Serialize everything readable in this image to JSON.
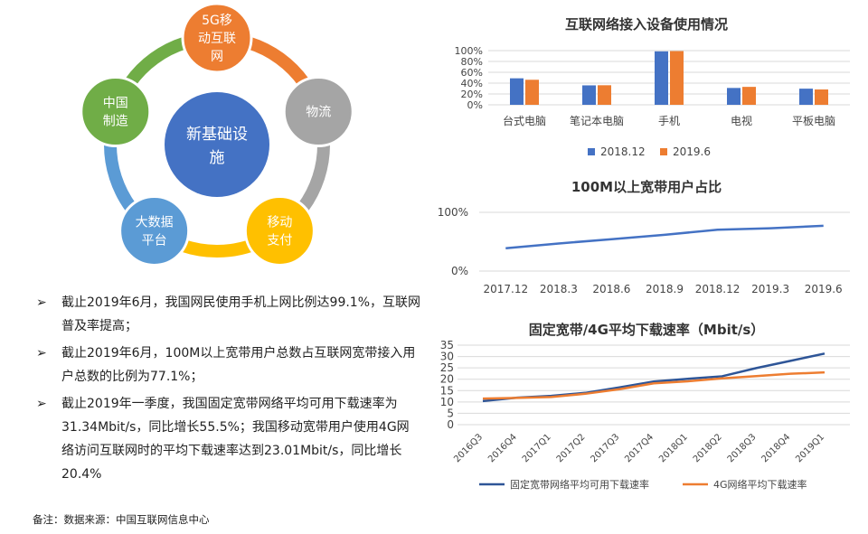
{
  "diagram": {
    "center": "新基础设施",
    "nodes": [
      {
        "label": "5G移动互联网",
        "color": "#ED7D31"
      },
      {
        "label": "物流",
        "color": "#A5A5A5"
      },
      {
        "label": "移动支付",
        "color": "#FFC000"
      },
      {
        "label": "大数据平台",
        "color": "#5B9BD5"
      },
      {
        "label": "中国制造",
        "color": "#70AD47"
      }
    ],
    "center_color": "#4472C4"
  },
  "bullets": [
    "截止2019年6月，我国网民使用手机上网比例达99.1%，互联网普及率提高；",
    "截止2019年6月，100M以上宽带用户总数占互联网宽带接入用户总数的比例为77.1%；",
    "截止2019年一季度，我国固定宽带网络平均可用下载速率为31.34Mbit/s，同比增长55.5%；我国移动宽带用户使用4G网络访问互联网时的平均下载速率达到23.01Mbit/s，同比增长20.4%"
  ],
  "note": "备注：数据来源：中国互联网信息中心",
  "chart_data": [
    {
      "type": "bar",
      "title": "互联网络接入设备使用情况",
      "categories": [
        "台式电脑",
        "笔记本电脑",
        "手机",
        "电视",
        "平板电脑"
      ],
      "series": [
        {
          "name": "2018.12",
          "values": [
            48.9,
            35.9,
            98.6,
            31.1,
            29.8
          ],
          "color": "#4472C4"
        },
        {
          "name": "2019.6",
          "values": [
            46.2,
            36.1,
            99.1,
            33.1,
            28.3
          ],
          "color": "#ED7D31"
        }
      ],
      "yticks": [
        "0%",
        "20%",
        "40%",
        "60%",
        "80%",
        "100%"
      ],
      "ylim": [
        0,
        100
      ],
      "legend": "bottom"
    },
    {
      "type": "line",
      "title": "100M以上宽带用户占比",
      "categories": [
        "2017.12",
        "2018.3",
        "2018.6",
        "2018.9",
        "2018.12",
        "2019.3",
        "2019.6"
      ],
      "series": [
        {
          "values": [
            38.9,
            47.0,
            54.3,
            61.8,
            70.3,
            72.9,
            77.1
          ],
          "color": "#4472C4"
        }
      ],
      "yticks": [
        "0%",
        "100%"
      ],
      "ylim": [
        0,
        100
      ]
    },
    {
      "type": "line",
      "title": "固定宽带/4G平均下载速率（Mbit/s）",
      "categories": [
        "2016Q3",
        "2016Q4",
        "2017Q1",
        "2017Q2",
        "2017Q3",
        "2017Q4",
        "2018Q1",
        "2018Q2",
        "2018Q3",
        "2018Q4",
        "2019Q1"
      ],
      "series": [
        {
          "name": "固定宽带网络平均可用下载速率",
          "values": [
            10.4,
            11.9,
            12.7,
            14.0,
            16.4,
            19.0,
            20.2,
            21.3,
            24.9,
            28.1,
            31.3
          ],
          "color": "#2E5597"
        },
        {
          "name": "4G网络平均下载速率",
          "values": [
            11.5,
            11.8,
            12.2,
            13.6,
            15.6,
            18.2,
            19.1,
            20.4,
            21.4,
            22.4,
            23.0
          ],
          "color": "#ED7D31"
        }
      ],
      "yticks": [
        "0",
        "5",
        "10",
        "15",
        "20",
        "25",
        "30",
        "35"
      ],
      "ylim": [
        0,
        35
      ],
      "legend": "bottom"
    }
  ]
}
